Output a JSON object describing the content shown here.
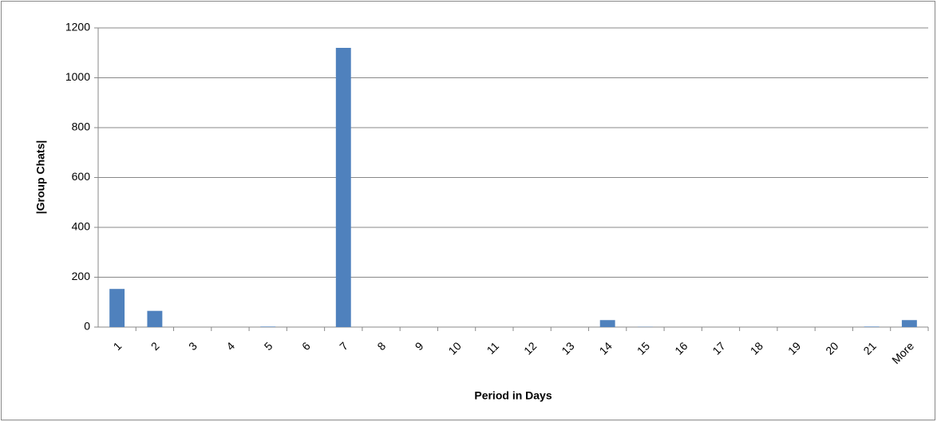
{
  "chart_data": {
    "type": "bar",
    "x_label": "Period in Days",
    "y_label": "|Group Chats|",
    "categories": [
      "1",
      "2",
      "3",
      "4",
      "5",
      "6",
      "7",
      "8",
      "9",
      "10",
      "11",
      "12",
      "13",
      "14",
      "15",
      "16",
      "17",
      "18",
      "19",
      "20",
      "21",
      "More"
    ],
    "values": [
      153,
      65,
      0,
      0,
      2,
      0,
      1120,
      0,
      0,
      0,
      0,
      0,
      0,
      28,
      1,
      0,
      0,
      0,
      0,
      0,
      2,
      28
    ],
    "color": "#4f81bd",
    "ylim": [
      0,
      1200
    ],
    "yticks": [
      0,
      200,
      400,
      600,
      800,
      1000,
      1200
    ],
    "grid": true
  }
}
